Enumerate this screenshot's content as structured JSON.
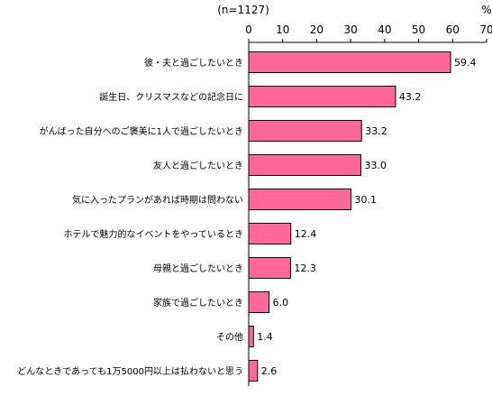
{
  "chart_data": {
    "type": "bar",
    "orientation": "horizontal",
    "title": "",
    "sample_note": "(n=1127)",
    "unit": "%",
    "xlim": [
      0,
      70
    ],
    "xticks": [
      0,
      10,
      20,
      30,
      40,
      50,
      60,
      70
    ],
    "grid": false,
    "legend": "none",
    "categories": [
      "彼・夫と過ごしたいとき",
      "誕生日、クリスマスなどの記念日に",
      "がんばった自分へのご褒美に1人で過ごしたいとき",
      "友人と過ごしたいとき",
      "気に入ったプランがあれば時期は問わない",
      "ホテルで魅力的なイベントをやっているとき",
      "母親と過ごしたいとき",
      "家族で過ごしたいとき",
      "その他",
      "どんなときであっても1万5000円以上は払わないと思う"
    ],
    "values": [
      59.4,
      43.2,
      33.2,
      33.0,
      30.1,
      12.4,
      12.3,
      6.0,
      1.4,
      2.6
    ],
    "value_labels": [
      "59.4",
      "43.2",
      "33.2",
      "33.0",
      "30.1",
      "12.4",
      "12.3",
      "6.0",
      "1.4",
      "2.6"
    ],
    "colors": {
      "bar_fill": "#ff6699",
      "bar_stroke": "#000000",
      "axis": "#000000",
      "text": "#000000"
    }
  }
}
